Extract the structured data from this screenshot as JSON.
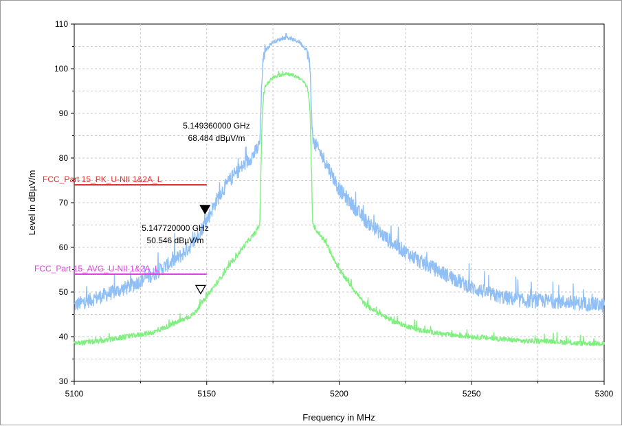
{
  "chart_data": {
    "type": "line",
    "xlabel": "Frequency in MHz",
    "ylabel": "Level in dBµV/m",
    "xlim": [
      5100,
      5300
    ],
    "ylim": [
      30,
      110
    ],
    "x_ticks": [
      5100,
      5150,
      5200,
      5250,
      5300
    ],
    "y_ticks": [
      30,
      40,
      50,
      60,
      70,
      80,
      90,
      100,
      110
    ],
    "grid": true,
    "series": [
      {
        "role": "peak",
        "color": "#8fbff5",
        "x": [
          5100,
          5110,
          5120,
          5130,
          5140,
          5145,
          5150,
          5155,
          5160,
          5165,
          5168,
          5170,
          5171,
          5172,
          5175,
          5180,
          5185,
          5188,
          5189,
          5190,
          5195,
          5200,
          5210,
          5220,
          5230,
          5240,
          5250,
          5260,
          5270,
          5280,
          5290,
          5300
        ],
        "values": [
          47,
          49,
          51,
          54,
          58,
          61,
          66,
          72,
          76,
          79,
          81,
          83,
          100,
          104,
          106,
          107,
          106,
          104,
          100,
          84,
          79,
          73,
          66,
          61,
          57,
          54,
          51,
          49,
          48,
          48,
          47.5,
          47
        ]
      },
      {
        "role": "average",
        "color": "#7ff07f",
        "x": [
          5100,
          5110,
          5120,
          5130,
          5140,
          5145,
          5150,
          5155,
          5160,
          5165,
          5168,
          5170,
          5171,
          5172,
          5175,
          5180,
          5185,
          5188,
          5189,
          5190,
          5195,
          5200,
          5210,
          5220,
          5230,
          5240,
          5250,
          5260,
          5270,
          5280,
          5290,
          5300
        ],
        "values": [
          38.5,
          39,
          40,
          41,
          43.5,
          45,
          49,
          53,
          57,
          61,
          63,
          65,
          91,
          96,
          98,
          99,
          98,
          96,
          91,
          65,
          61,
          55,
          47,
          43.5,
          41.5,
          40.5,
          40,
          39.5,
          39,
          39,
          38.5,
          38.5
        ]
      }
    ],
    "limit_lines": [
      {
        "label": "FCC_Part 15_PK_U-NII 1&2A_L",
        "color": "#e03030",
        "x": [
          5100,
          5150
        ],
        "y": 74
      },
      {
        "label": "FCC_Part 15_AVG_U-NII 1&2A_L",
        "color": "#e040e0",
        "x": [
          5100,
          5150
        ],
        "y": 54
      }
    ],
    "markers": [
      {
        "style": "filled",
        "x": 5149.36,
        "y": 68.484,
        "freq_text": "5.149360000 GHz",
        "level_text": "68.484 dBµV/m"
      },
      {
        "style": "hollow",
        "x": 5147.72,
        "y": 50.546,
        "freq_text": "5.147720000 GHz",
        "level_text": "50.546 dBµV/m"
      }
    ]
  }
}
